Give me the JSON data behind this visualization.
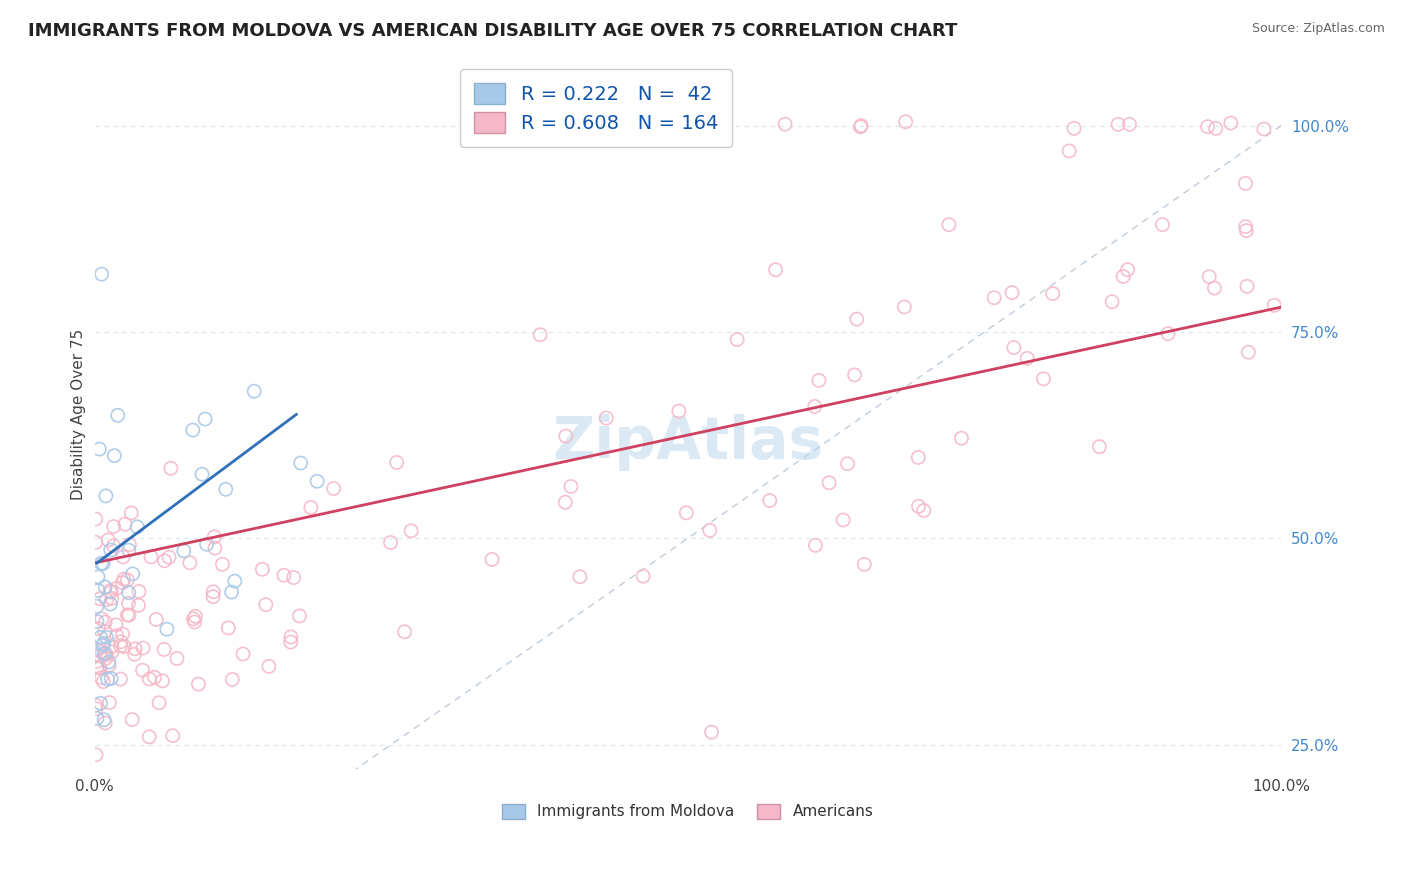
{
  "title": "IMMIGRANTS FROM MOLDOVA VS AMERICAN DISABILITY AGE OVER 75 CORRELATION CHART",
  "source": "Source: ZipAtlas.com",
  "ylabel": "Disability Age Over 75",
  "xlim": [
    0.0,
    1.0
  ],
  "ylim": [
    0.22,
    1.08
  ],
  "blue_R": 0.222,
  "blue_N": 42,
  "pink_R": 0.608,
  "pink_N": 164,
  "blue_color": "#a8c8e8",
  "pink_color": "#f5b8c8",
  "blue_line_color": "#3070b8",
  "pink_line_color": "#d04060",
  "diagonal_color": "#b8c8d8",
  "watermark": "ZipAtlas",
  "background_color": "#ffffff",
  "grid_color": "#d8e4f0",
  "title_fontsize": 13,
  "label_fontsize": 11,
  "tick_fontsize": 11,
  "legend_fontsize": 14,
  "right_tick_color": "#4488cc"
}
